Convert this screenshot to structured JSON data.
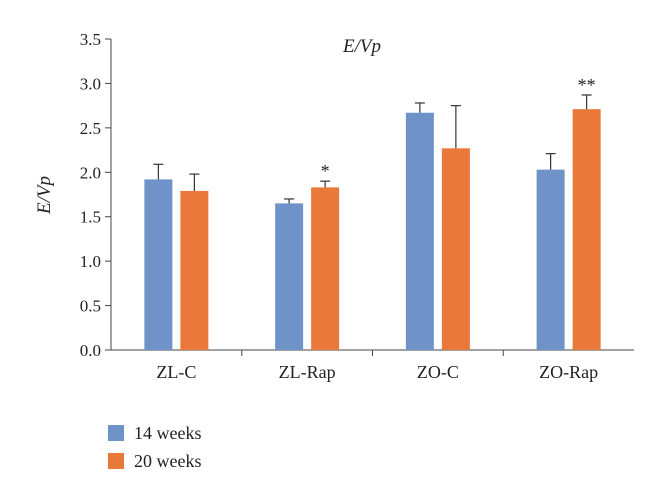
{
  "chart_data": {
    "type": "bar",
    "title": "E/Vp",
    "ylabel": "E/Vp",
    "xlabel": "",
    "categories": [
      "ZL-C",
      "ZL-Rap",
      "ZO-C",
      "ZO-Rap"
    ],
    "ylim": [
      0,
      3.5
    ],
    "yticks": [
      "0.0",
      "0.5",
      "1.0",
      "1.5",
      "2.0",
      "2.5",
      "3.0",
      "3.5"
    ],
    "grid": false,
    "legend_position": "bottom-left",
    "series": [
      {
        "name": "14 weeks",
        "color": "#6f93c8",
        "values": [
          1.92,
          1.65,
          2.67,
          2.03
        ],
        "errors": [
          0.17,
          0.05,
          0.11,
          0.18
        ]
      },
      {
        "name": "20 weeks",
        "color": "#e8793a",
        "values": [
          1.79,
          1.83,
          2.27,
          2.71
        ],
        "errors": [
          0.19,
          0.07,
          0.48,
          0.16
        ]
      }
    ],
    "annotations": [
      "",
      "*",
      "",
      "**"
    ]
  }
}
